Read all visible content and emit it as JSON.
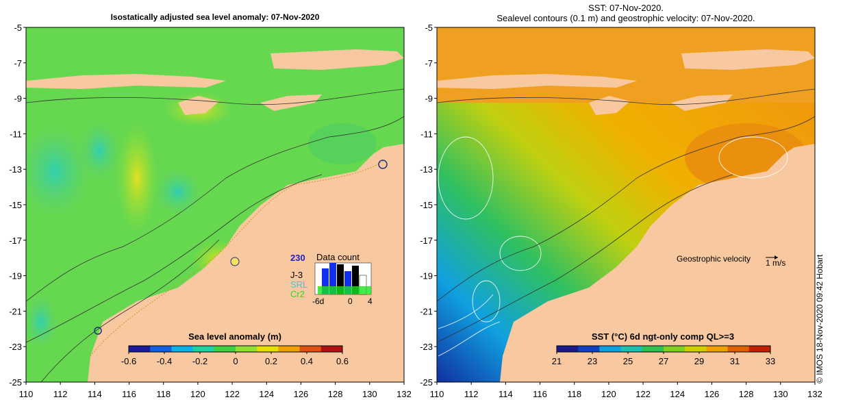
{
  "left_map": {
    "title": "Isostatically adjusted sea level anomaly: 07-Nov-2020",
    "colorbar": {
      "label": "Sea level anomaly (m)",
      "ticks": [
        "-0.6",
        "-0.4",
        "-0.2",
        "0",
        "0.2",
        "0.4",
        "0.6"
      ],
      "colors": [
        "#1a1a9a",
        "#1060e0",
        "#10b0e8",
        "#20d0a0",
        "#40d040",
        "#90e030",
        "#e8e000",
        "#f0a000",
        "#e05010",
        "#b01010"
      ]
    },
    "data_count": {
      "title": "Data count",
      "missions": [
        "J-3",
        "SRL",
        "Cr2"
      ],
      "x_ticks": [
        "-6d",
        "0",
        "4"
      ],
      "mission_colors": [
        "#000000",
        "#30d0d0",
        "#20e020"
      ]
    }
  },
  "right_map": {
    "title_line1": "SST: 07-Nov-2020.",
    "title_line2": "Sealevel contours (0.1 m) and geostrophic velocity: 07-Nov-2020.",
    "colorbar": {
      "label": "SST (°C) 6d ngt-only comp QL>=3",
      "ticks": [
        "21",
        "23",
        "25",
        "27",
        "29",
        "31",
        "33"
      ],
      "colors": [
        "#1a1a8a",
        "#1040c0",
        "#10a0e0",
        "#20c0b0",
        "#30c050",
        "#80d020",
        "#d0d000",
        "#f0a000",
        "#e06000",
        "#c02000"
      ]
    },
    "velocity_key": {
      "label": "Geostrophic velocity",
      "unit": "1 m/s"
    }
  },
  "axes": {
    "lat_ticks": [
      "-5",
      "-7",
      "-9",
      "-11",
      "-13",
      "-15",
      "-17",
      "-19",
      "-21",
      "-23",
      "-25"
    ],
    "lon_ticks": [
      "110",
      "112",
      "114",
      "116",
      "118",
      "120",
      "122",
      "124",
      "126",
      "128",
      "130",
      "132"
    ]
  },
  "credit": "© IMOS 18-Nov-2020 09:42 Hobart",
  "colors": {
    "land": "#f8c8a0",
    "sla_bg": "#66d850",
    "sst_bg": "#f0a020"
  }
}
